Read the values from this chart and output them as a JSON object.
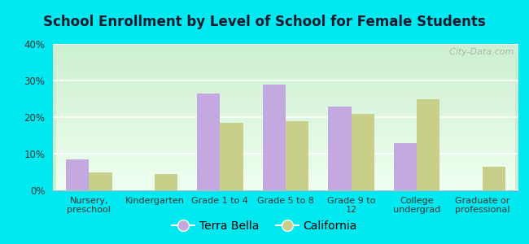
{
  "title": "School Enrollment by Level of School for Female Students",
  "categories": [
    "Nursery,\npreschool",
    "Kindergarten",
    "Grade 1 to 4",
    "Grade 5 to 8",
    "Grade 9 to\n12",
    "College\nundergrad",
    "Graduate or\nprofessional"
  ],
  "terra_bella": [
    8.5,
    0,
    26.5,
    29.0,
    23.0,
    13.0,
    0
  ],
  "california": [
    5.0,
    4.5,
    18.5,
    19.0,
    21.0,
    25.0,
    6.5
  ],
  "terra_bella_color": "#c4a8e0",
  "california_color": "#c8cf8a",
  "background_color": "#00e8f0",
  "ylim": [
    0,
    40
  ],
  "yticks": [
    0,
    10,
    20,
    30,
    40
  ],
  "ytick_labels": [
    "0%",
    "10%",
    "20%",
    "30%",
    "40%"
  ],
  "bar_width": 0.35,
  "legend_labels": [
    "Terra Bella",
    "California"
  ],
  "watermark": "  City-Data.com"
}
